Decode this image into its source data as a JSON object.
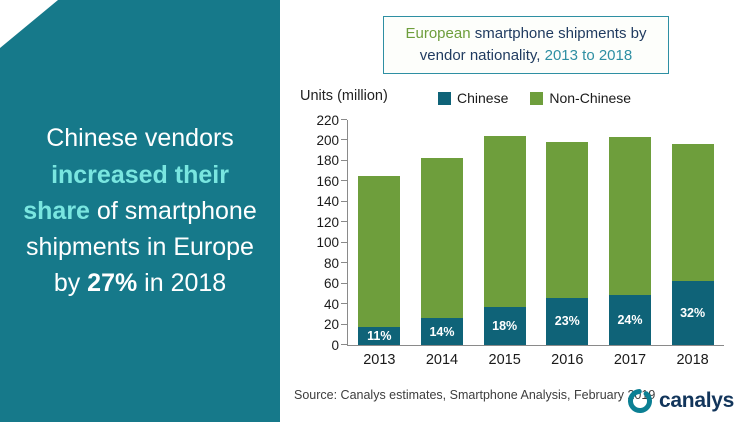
{
  "left_panel": {
    "seg1": "Chinese vendors ",
    "seg2": "increased their share",
    "seg3": " of smartphone shipments in Europe by ",
    "seg4": "27%",
    "seg5": " in 2018"
  },
  "title_box": {
    "seg1": "European ",
    "seg2": "smartphone shipments by vendor nationality, ",
    "seg3": "2013 to 2018"
  },
  "chart_data": {
    "type": "bar",
    "stacked": true,
    "title": "European smartphone shipments by vendor nationality, 2013 to 2018",
    "units_label": "Units (million)",
    "categories": [
      "2013",
      "2014",
      "2015",
      "2016",
      "2017",
      "2018"
    ],
    "series": [
      {
        "name": "Chinese",
        "color": "#0F6378",
        "values": [
          18,
          26,
          37,
          46,
          49,
          63
        ]
      },
      {
        "name": "Non-Chinese",
        "color": "#6E9E3C",
        "values": [
          147,
          157,
          167,
          153,
          154,
          134
        ]
      }
    ],
    "totals": [
      165,
      183,
      204,
      199,
      203,
      197
    ],
    "bar_labels": [
      "11%",
      "14%",
      "18%",
      "23%",
      "24%",
      "32%"
    ],
    "ylim": [
      0,
      220
    ],
    "ytick_step": 20,
    "grid": false,
    "legend_position": "top"
  },
  "footer": {
    "source": "Source:  Canalys estimates, Smartphone  Analysis, February 2019",
    "logo_text": "canalys"
  },
  "theme": {
    "left_panel_bg": "#16798A",
    "highlight_cyan": "#79E6E0",
    "accent_teal": "#2E8FA3",
    "navy": "#1F3A5F",
    "chinese_blue": "#0F6378",
    "non_chinese_green": "#6E9E3C"
  }
}
